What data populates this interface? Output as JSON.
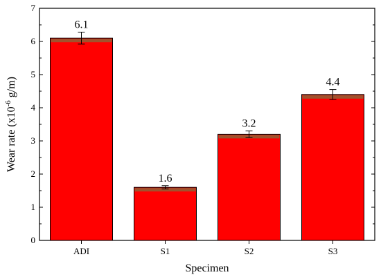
{
  "chart_data": {
    "type": "bar",
    "categories": [
      "ADI",
      "S1",
      "S2",
      "S3"
    ],
    "values": [
      6.1,
      1.6,
      3.2,
      4.4
    ],
    "errors": [
      0.18,
      0.05,
      0.1,
      0.15
    ],
    "data_labels": [
      "6.1",
      "1.6",
      "3.2",
      "4.4"
    ],
    "xlabel": "Specimen",
    "ylabel_main": "Wear rate (x10",
    "ylabel_sup": "-6",
    "ylabel_end": " g/m)",
    "ylim": [
      0,
      7
    ],
    "yticks": [
      "0",
      "1",
      "2",
      "3",
      "4",
      "5",
      "6",
      "7"
    ],
    "grid": false,
    "bar_color": "#ff0000",
    "cap_color": "#a0522d",
    "edge_color": "#000000"
  }
}
